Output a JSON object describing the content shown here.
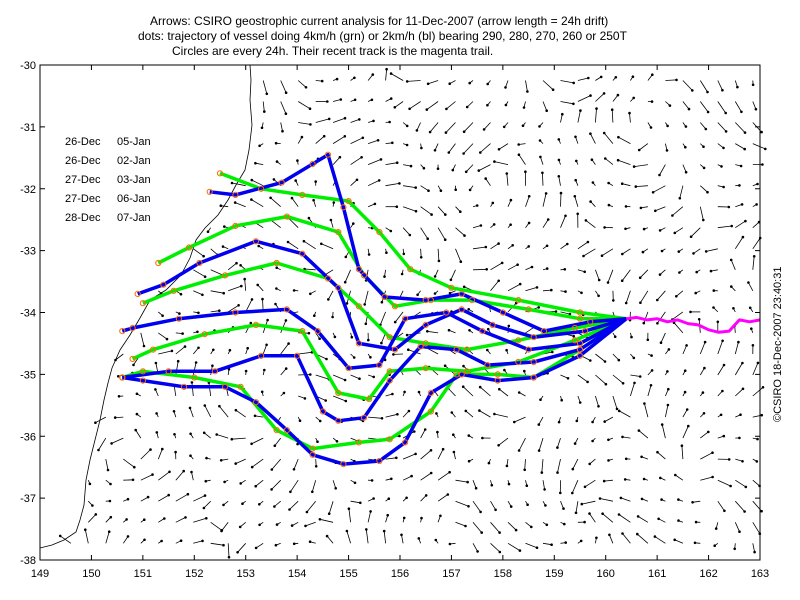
{
  "title": {
    "line1": "Arrows: CSIRO geostrophic current analysis for 11-Dec-2007 (arrow length = 24h drift)",
    "line2": "dots: trajectory of vessel doing 4km/h (grn) or 2km/h (bl) bearing 290, 280, 270, 260 or 250T",
    "line3": "Circles are every 24h. Their recent track is the magenta trail."
  },
  "credit": "©CSIRO 18-Dec-2007 23:40:31",
  "legend": [
    {
      "green_arrival": "26-Dec",
      "blue_arrival": "05-Jan"
    },
    {
      "green_arrival": "26-Dec",
      "blue_arrival": "02-Jan"
    },
    {
      "green_arrival": "27-Dec",
      "blue_arrival": "03-Jan"
    },
    {
      "green_arrival": "27-Dec",
      "blue_arrival": "06-Jan"
    },
    {
      "green_arrival": "28-Dec",
      "blue_arrival": "07-Jan"
    }
  ],
  "colors": {
    "green": "#00ee00",
    "blue": "#0000ee",
    "magenta": "#ff00ff",
    "circle": "#ff6a00",
    "arrows": "#000000"
  },
  "chart_data": {
    "type": "map",
    "xlim": [
      149,
      163
    ],
    "ylim": [
      -38,
      -30
    ],
    "x_ticks": [
      "149",
      "150",
      "151",
      "152",
      "153",
      "154",
      "155",
      "156",
      "157",
      "158",
      "159",
      "160",
      "161",
      "162",
      "163"
    ],
    "y_ticks": [
      "-30",
      "-31",
      "-32",
      "-33",
      "-34",
      "-35",
      "-36",
      "-37",
      "-38"
    ],
    "magenta_trail": [
      [
        163.0,
        -34.12
      ],
      [
        162.8,
        -34.15
      ],
      [
        162.6,
        -34.12
      ],
      [
        162.4,
        -34.3
      ],
      [
        162.2,
        -34.32
      ],
      [
        162.0,
        -34.28
      ],
      [
        161.8,
        -34.2
      ],
      [
        161.6,
        -34.18
      ],
      [
        161.4,
        -34.12
      ],
      [
        161.2,
        -34.15
      ],
      [
        161.0,
        -34.1
      ],
      [
        160.8,
        -34.12
      ],
      [
        160.6,
        -34.08
      ],
      [
        160.4,
        -34.1
      ]
    ],
    "green_tracks": [
      [
        [
          160.4,
          -34.1
        ],
        [
          159.5,
          -34.0
        ],
        [
          158.3,
          -33.8
        ],
        [
          157.0,
          -33.6
        ],
        [
          156.2,
          -33.3
        ],
        [
          155.6,
          -32.7
        ],
        [
          155.0,
          -32.2
        ],
        [
          154.1,
          -32.1
        ],
        [
          153.3,
          -32.0
        ],
        [
          152.5,
          -31.75
        ]
      ],
      [
        [
          160.4,
          -34.1
        ],
        [
          159.5,
          -34.1
        ],
        [
          158.5,
          -33.95
        ],
        [
          157.4,
          -33.8
        ],
        [
          156.6,
          -33.8
        ],
        [
          155.9,
          -33.9
        ],
        [
          155.3,
          -33.4
        ],
        [
          154.8,
          -32.7
        ],
        [
          153.8,
          -32.45
        ],
        [
          152.8,
          -32.6
        ],
        [
          151.9,
          -32.95
        ],
        [
          151.3,
          -33.2
        ]
      ],
      [
        [
          160.4,
          -34.1
        ],
        [
          159.4,
          -34.25
        ],
        [
          158.3,
          -34.45
        ],
        [
          157.3,
          -34.6
        ],
        [
          156.5,
          -34.5
        ],
        [
          155.8,
          -34.4
        ],
        [
          155.2,
          -33.9
        ],
        [
          154.6,
          -33.45
        ],
        [
          153.6,
          -33.2
        ],
        [
          152.6,
          -33.4
        ],
        [
          151.6,
          -33.65
        ],
        [
          151.0,
          -33.85
        ]
      ],
      [
        [
          160.4,
          -34.1
        ],
        [
          159.4,
          -34.45
        ],
        [
          158.3,
          -34.8
        ],
        [
          157.3,
          -34.95
        ],
        [
          156.5,
          -34.9
        ],
        [
          155.8,
          -34.95
        ],
        [
          155.4,
          -35.4
        ],
        [
          154.8,
          -35.3
        ],
        [
          154.1,
          -34.3
        ],
        [
          153.2,
          -34.2
        ],
        [
          152.2,
          -34.35
        ],
        [
          151.2,
          -34.6
        ],
        [
          150.8,
          -34.75
        ]
      ],
      [
        [
          160.4,
          -34.1
        ],
        [
          159.5,
          -34.6
        ],
        [
          158.6,
          -35.05
        ],
        [
          157.9,
          -35.0
        ],
        [
          157.1,
          -35.0
        ],
        [
          156.6,
          -35.6
        ],
        [
          155.8,
          -36.05
        ],
        [
          155.2,
          -36.1
        ],
        [
          154.3,
          -36.2
        ],
        [
          153.6,
          -35.9
        ],
        [
          152.9,
          -35.2
        ],
        [
          152.0,
          -35.05
        ],
        [
          151.0,
          -34.95
        ],
        [
          150.6,
          -35.05
        ]
      ]
    ],
    "blue_tracks": [
      [
        [
          160.4,
          -34.1
        ],
        [
          159.7,
          -34.15
        ],
        [
          158.8,
          -34.3
        ],
        [
          158.0,
          -34.0
        ],
        [
          157.2,
          -33.7
        ],
        [
          156.5,
          -33.8
        ],
        [
          155.7,
          -33.75
        ],
        [
          155.2,
          -33.3
        ],
        [
          154.9,
          -32.3
        ],
        [
          154.6,
          -31.45
        ],
        [
          154.3,
          -31.6
        ],
        [
          153.7,
          -31.9
        ],
        [
          152.8,
          -32.1
        ],
        [
          152.3,
          -32.05
        ]
      ],
      [
        [
          160.4,
          -34.1
        ],
        [
          159.6,
          -34.3
        ],
        [
          158.6,
          -34.4
        ],
        [
          157.8,
          -34.2
        ],
        [
          157.2,
          -33.95
        ],
        [
          156.5,
          -34.2
        ],
        [
          155.9,
          -34.6
        ],
        [
          155.2,
          -34.5
        ],
        [
          154.8,
          -33.6
        ],
        [
          154.1,
          -33.05
        ],
        [
          153.2,
          -32.85
        ],
        [
          152.1,
          -33.2
        ],
        [
          151.4,
          -33.55
        ],
        [
          150.9,
          -33.7
        ]
      ],
      [
        [
          160.4,
          -34.1
        ],
        [
          159.5,
          -34.5
        ],
        [
          158.5,
          -34.6
        ],
        [
          157.6,
          -34.3
        ],
        [
          156.9,
          -34.0
        ],
        [
          156.1,
          -34.1
        ],
        [
          155.6,
          -34.85
        ],
        [
          155.0,
          -34.9
        ],
        [
          154.4,
          -34.3
        ],
        [
          153.8,
          -33.95
        ],
        [
          152.8,
          -34.0
        ],
        [
          151.7,
          -34.1
        ],
        [
          150.8,
          -34.25
        ],
        [
          150.6,
          -34.3
        ]
      ],
      [
        [
          160.4,
          -34.1
        ],
        [
          159.5,
          -34.6
        ],
        [
          158.6,
          -34.8
        ],
        [
          157.7,
          -34.85
        ],
        [
          157.1,
          -34.6
        ],
        [
          156.4,
          -34.55
        ],
        [
          155.8,
          -35.1
        ],
        [
          155.3,
          -35.7
        ],
        [
          154.8,
          -35.75
        ],
        [
          154.5,
          -35.6
        ],
        [
          154.0,
          -34.7
        ],
        [
          153.3,
          -34.7
        ],
        [
          152.4,
          -34.95
        ],
        [
          151.5,
          -34.95
        ],
        [
          150.6,
          -35.05
        ]
      ],
      [
        [
          160.4,
          -34.1
        ],
        [
          159.5,
          -34.7
        ],
        [
          158.6,
          -35.05
        ],
        [
          157.9,
          -35.1
        ],
        [
          157.2,
          -35.0
        ],
        [
          156.6,
          -35.3
        ],
        [
          156.1,
          -36.1
        ],
        [
          155.6,
          -36.4
        ],
        [
          154.9,
          -36.45
        ],
        [
          154.3,
          -36.3
        ],
        [
          153.8,
          -35.9
        ],
        [
          153.2,
          -35.45
        ],
        [
          152.6,
          -35.2
        ],
        [
          151.8,
          -35.2
        ],
        [
          151.0,
          -35.1
        ],
        [
          150.6,
          -35.05
        ]
      ]
    ]
  }
}
